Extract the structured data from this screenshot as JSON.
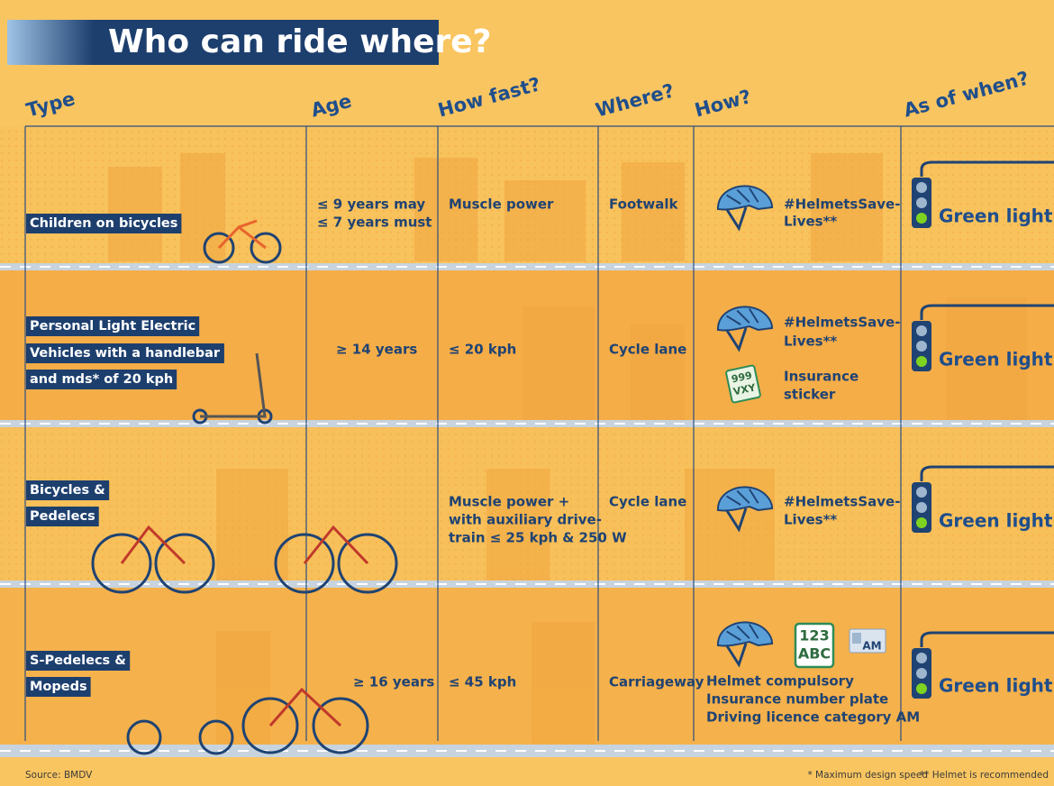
{
  "title": "Who can ride where?",
  "headers": [
    "Type",
    "Age",
    "How fast?",
    "Where?",
    "How?",
    "As of when?"
  ],
  "rows": [
    {
      "type": [
        "Children on bicycles"
      ],
      "age": [
        "≤ 9 years may",
        "≤ 7 years must"
      ],
      "speed": [
        "Muscle power"
      ],
      "where": "Footwalk",
      "how": [
        "#HelmetsSave-",
        "Lives**"
      ],
      "when": "Green light!"
    },
    {
      "type": [
        "Personal Light Electric",
        "Vehicles with a handlebar",
        "and mds* of 20 kph"
      ],
      "age": [
        "≥ 14 years"
      ],
      "speed": [
        "≤ 20 kph"
      ],
      "where": "Cycle lane",
      "how": [
        "#HelmetsSave-",
        "Lives**"
      ],
      "insurance": [
        "Insurance",
        "sticker"
      ],
      "sticker": [
        "999",
        "VXY"
      ],
      "when": "Green light!"
    },
    {
      "type": [
        "Bicycles &",
        "Pedelecs"
      ],
      "speed": [
        "Muscle power +",
        "with  auxiliary drive-",
        "train ≤ 25 kph & 250 W"
      ],
      "where": "Cycle lane",
      "how": [
        "#HelmetsSave-",
        "Lives**"
      ],
      "when": "Green light!"
    },
    {
      "type": [
        "S-Pedelecs &",
        "Mopeds"
      ],
      "age": [
        "≥ 16 years"
      ],
      "speed": [
        "≤ 45 kph"
      ],
      "where": "Carriageway",
      "plate": [
        "123",
        "ABC"
      ],
      "licence": "AM",
      "how": [
        "Helmet compulsory",
        "Insurance number plate",
        "Driving licence category AM"
      ],
      "when": "Green light!"
    }
  ],
  "footer": {
    "source": "Source: BMDV",
    "notes": [
      "* Maximum design speed",
      "** Helmet is recommended"
    ]
  }
}
